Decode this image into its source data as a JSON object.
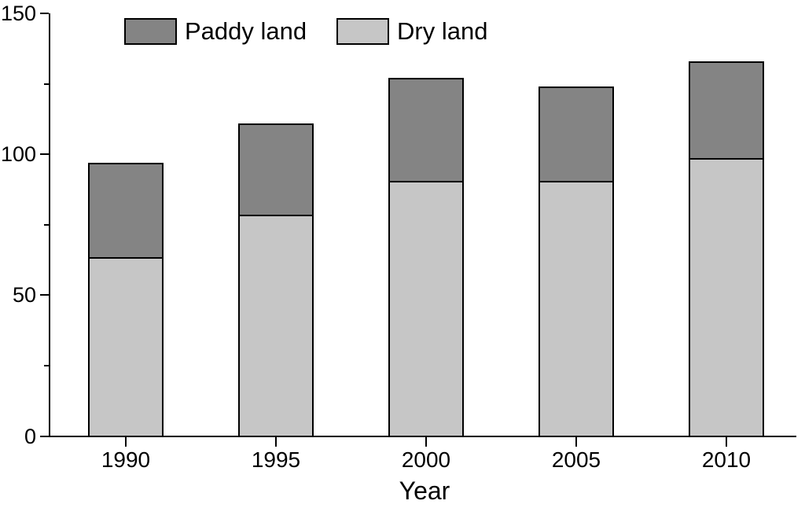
{
  "chart_data": {
    "type": "bar",
    "stacked": true,
    "title": "",
    "xlabel": "Year",
    "ylabel": "",
    "categories": [
      "1990",
      "1995",
      "2000",
      "2005",
      "2010"
    ],
    "series": [
      {
        "name": "Dry land",
        "color": "#c6c6c6",
        "values": [
          63,
          78,
          90,
          90,
          98
        ]
      },
      {
        "name": "Paddy land",
        "color": "#848484",
        "values": [
          34,
          33,
          37,
          34,
          35
        ]
      }
    ],
    "stacked_totals": [
      97,
      111,
      127,
      124,
      133
    ],
    "ylim": [
      0,
      150
    ],
    "y_major_ticks": [
      0,
      50,
      100,
      150
    ],
    "y_minor_ticks": [
      25,
      75,
      125
    ],
    "grid": false,
    "legend_position": "top-left-inside",
    "legend_order": [
      "Paddy land",
      "Dry land"
    ]
  },
  "colors": {
    "background": "#ffffff",
    "axis": "#000000",
    "text": "#000000",
    "bar_border": "#000000",
    "paddy_fill": "#848484",
    "dry_fill": "#c6c6c6"
  }
}
